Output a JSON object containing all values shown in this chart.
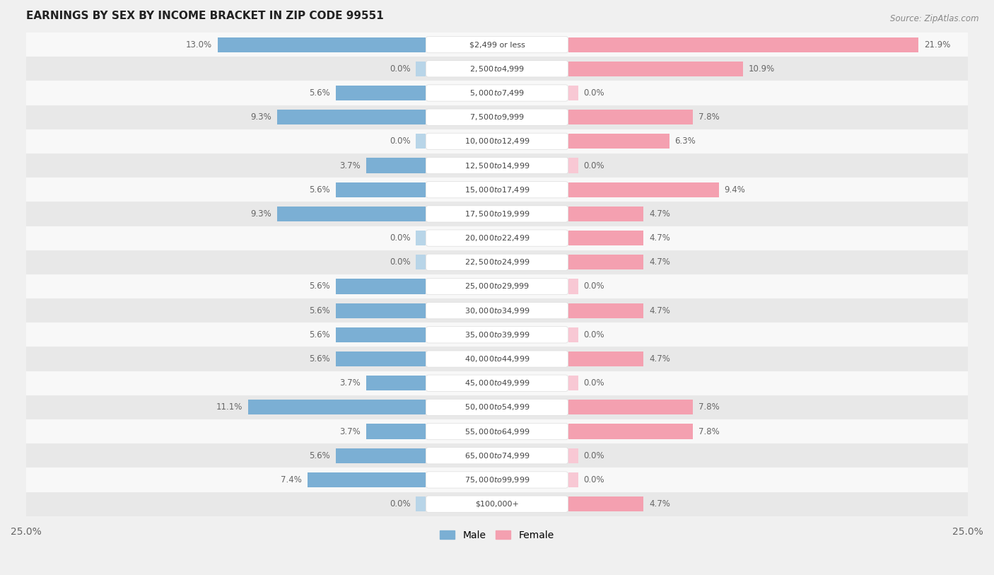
{
  "title": "EARNINGS BY SEX BY INCOME BRACKET IN ZIP CODE 99551",
  "source": "Source: ZipAtlas.com",
  "categories": [
    "$2,499 or less",
    "$2,500 to $4,999",
    "$5,000 to $7,499",
    "$7,500 to $9,999",
    "$10,000 to $12,499",
    "$12,500 to $14,999",
    "$15,000 to $17,499",
    "$17,500 to $19,999",
    "$20,000 to $22,499",
    "$22,500 to $24,999",
    "$25,000 to $29,999",
    "$30,000 to $34,999",
    "$35,000 to $39,999",
    "$40,000 to $44,999",
    "$45,000 to $49,999",
    "$50,000 to $54,999",
    "$55,000 to $64,999",
    "$65,000 to $74,999",
    "$75,000 to $99,999",
    "$100,000+"
  ],
  "male_values": [
    13.0,
    0.0,
    5.6,
    9.3,
    0.0,
    3.7,
    5.6,
    9.3,
    0.0,
    0.0,
    5.6,
    5.6,
    5.6,
    5.6,
    3.7,
    11.1,
    3.7,
    5.6,
    7.4,
    0.0
  ],
  "female_values": [
    21.9,
    10.9,
    0.0,
    7.8,
    6.3,
    0.0,
    9.4,
    4.7,
    4.7,
    4.7,
    0.0,
    4.7,
    0.0,
    4.7,
    0.0,
    7.8,
    7.8,
    0.0,
    0.0,
    4.7
  ],
  "male_color": "#7bafd4",
  "female_color": "#f4a0b0",
  "male_color_light": "#b8d5e8",
  "female_color_light": "#f8c8d4",
  "label_color": "#666666",
  "category_color": "#444444",
  "max_val": 25.0,
  "bg_color": "#f0f0f0",
  "row_light_color": "#f8f8f8",
  "row_dark_color": "#e8e8e8"
}
